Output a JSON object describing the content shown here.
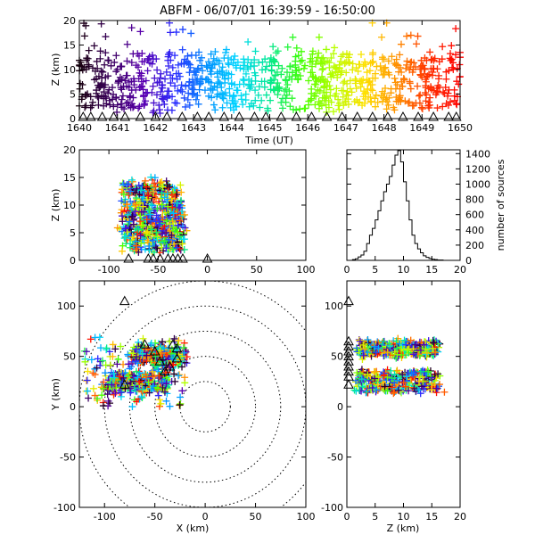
{
  "title": "ABFM - 06/07/01 16:39:59 - 16:50:00",
  "colors": {
    "axis": "#000000",
    "station_marker": "#000000",
    "rainbow": [
      "#1a0010",
      "#3c0060",
      "#5a00b0",
      "#2a2aff",
      "#0090ff",
      "#00d8ff",
      "#00e890",
      "#40ff00",
      "#b8ff00",
      "#ffe000",
      "#ff9000",
      "#ff3000",
      "#ff0000"
    ]
  },
  "chart_data": [
    {
      "id": "time_height",
      "type": "scatter",
      "xlabel": "Time (UT)",
      "ylabel": "Z (km)",
      "xlim": [
        1640,
        1650
      ],
      "ylim": [
        0,
        20
      ],
      "xticks": [
        "1640",
        "1641",
        "1642",
        "1643",
        "1644",
        "1645",
        "1646",
        "1647",
        "1648",
        "1649",
        "1650"
      ],
      "yticks": [
        "0",
        "5",
        "10",
        "15",
        "20"
      ],
      "marker": "plus",
      "color_by": "time",
      "source_band_km": [
        2,
        13
      ],
      "stations_marker": "triangle",
      "station_times": [
        1640.1,
        1640.3,
        1640.6,
        1640.9,
        1641.2,
        1641.6,
        1642.0,
        1642.3,
        1642.7,
        1643.1,
        1643.4,
        1643.8,
        1644.2,
        1644.6,
        1644.9,
        1645.3,
        1645.7,
        1646.1,
        1646.5,
        1646.9,
        1647.3,
        1647.7,
        1648.1,
        1648.5,
        1648.9,
        1649.3,
        1649.7,
        1649.9
      ]
    },
    {
      "id": "x_height",
      "type": "scatter",
      "xlabel": "",
      "ylabel": "Z (km)",
      "xlim": [
        -130,
        100
      ],
      "ylim": [
        0,
        20
      ],
      "xticks": [
        "-100",
        "-50",
        "0",
        "50",
        "100"
      ],
      "yticks": [
        "0",
        "5",
        "10",
        "15",
        "20"
      ],
      "marker": "plus",
      "color_by": "time",
      "stations_marker": "triangle",
      "station_x": [
        -80,
        -60,
        -55,
        -48,
        -40,
        -35,
        -30,
        -25,
        0
      ]
    },
    {
      "id": "height_histogram",
      "type": "bar",
      "xlabel": "",
      "ylabel": "number of sources",
      "xlim": [
        0,
        20
      ],
      "ylim": [
        0,
        1450
      ],
      "xticks": [
        "0",
        "5",
        "10",
        "15",
        "20"
      ],
      "yticks": [
        "0",
        "200",
        "400",
        "600",
        "800",
        "1000",
        "1200",
        "1400"
      ],
      "bin_width_km": 0.5,
      "bin_start_km": 0,
      "values": [
        0,
        0,
        10,
        20,
        45,
        70,
        120,
        220,
        330,
        420,
        530,
        650,
        780,
        900,
        1000,
        1100,
        1250,
        1380,
        1440,
        1290,
        1030,
        780,
        530,
        330,
        220,
        150,
        100,
        60,
        40,
        25,
        15,
        10,
        5,
        5,
        0,
        0,
        0,
        0,
        0,
        0
      ]
    },
    {
      "id": "plan_view",
      "type": "scatter",
      "xlabel": "X (km)",
      "ylabel": "Y (km)",
      "xlim": [
        -125,
        100
      ],
      "ylim": [
        -100,
        125
      ],
      "xticks": [
        "-100",
        "-50",
        "0",
        "50",
        "100"
      ],
      "yticks": [
        "-100",
        "-50",
        "0",
        "50",
        "100"
      ],
      "marker": "plus",
      "color_by": "time",
      "range_rings_km": [
        25,
        50,
        75,
        100,
        125
      ],
      "stations": [
        [
          -80,
          105
        ],
        [
          -80,
          22
        ],
        [
          -60,
          62
        ],
        [
          -50,
          55
        ],
        [
          -45,
          45
        ],
        [
          -40,
          35
        ],
        [
          -35,
          40
        ],
        [
          -32,
          62
        ],
        [
          -28,
          58
        ],
        [
          -28,
          48
        ]
      ]
    },
    {
      "id": "height_north",
      "type": "scatter",
      "xlabel": "Z (km)",
      "ylabel": "",
      "xlim": [
        0,
        20
      ],
      "ylim": [
        -100,
        125
      ],
      "xticks": [
        "0",
        "5",
        "10",
        "15",
        "20"
      ],
      "yticks": [
        "-100",
        "-50",
        "0",
        "50",
        "100"
      ],
      "marker": "plus",
      "color_by": "time",
      "stations_marker": "triangle",
      "station_y": [
        22,
        30,
        35,
        40,
        45,
        50,
        55,
        60,
        65,
        105
      ]
    }
  ]
}
